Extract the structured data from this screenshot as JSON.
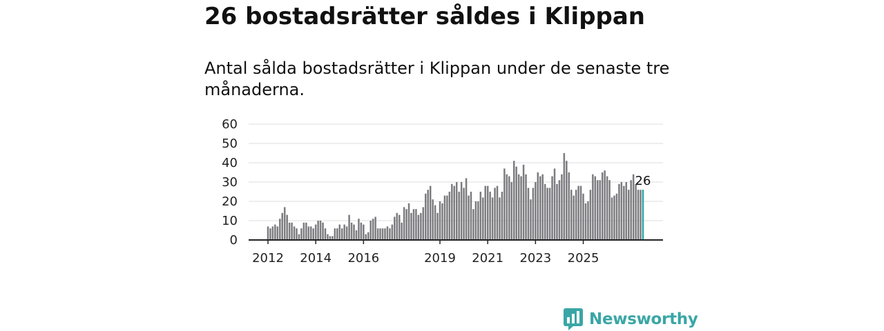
{
  "title": "26 bostadsrätter såldes i Klippan",
  "subtitle": "Antal sålda bostadsrätter i Klippan under de senaste tre månaderna.",
  "brand": {
    "name": "Newsworthy",
    "icon": "chart-bubble-icon",
    "color": "#3aa6a6"
  },
  "colors": {
    "bar": "#7b7b80",
    "highlight": "#2aa6a6",
    "grid": "#dddddd",
    "axis": "#222222"
  },
  "chart_data": {
    "type": "bar",
    "title": "",
    "xlabel": "",
    "ylabel": "",
    "ylim": [
      0,
      60
    ],
    "yticks": [
      0,
      10,
      20,
      30,
      40,
      50,
      60
    ],
    "xticks": [
      "2012",
      "2014",
      "2016",
      "2019",
      "2021",
      "2023",
      "2025"
    ],
    "xtick_index": [
      0,
      20,
      40,
      72,
      92,
      112,
      132
    ],
    "grid": true,
    "legend": "none",
    "highlight_last": true,
    "annotation": "26",
    "values": [
      7,
      6,
      7,
      8,
      7,
      11,
      14,
      17,
      13,
      9,
      9,
      7,
      6,
      3,
      6,
      9,
      9,
      7,
      7,
      6,
      8,
      10,
      10,
      9,
      6,
      3,
      2,
      2,
      6,
      6,
      8,
      6,
      8,
      7,
      13,
      9,
      8,
      5,
      11,
      9,
      8,
      3,
      4,
      10,
      11,
      12,
      6,
      6,
      6,
      6,
      7,
      6,
      8,
      12,
      14,
      13,
      9,
      17,
      16,
      19,
      14,
      16,
      16,
      13,
      14,
      17,
      24,
      26,
      28,
      21,
      18,
      14,
      20,
      19,
      23,
      23,
      25,
      29,
      28,
      30,
      25,
      30,
      27,
      32,
      23,
      25,
      16,
      20,
      20,
      25,
      22,
      28,
      28,
      25,
      22,
      27,
      28,
      22,
      25,
      37,
      34,
      33,
      30,
      41,
      38,
      34,
      33,
      39,
      34,
      27,
      21,
      27,
      30,
      35,
      33,
      34,
      29,
      27,
      27,
      33,
      37,
      29,
      31,
      34,
      45,
      41,
      35,
      26,
      23,
      26,
      28,
      28,
      24,
      19,
      20,
      26,
      34,
      33,
      31,
      31,
      35,
      36,
      33,
      31,
      22,
      23,
      24,
      29,
      30,
      28,
      30,
      26,
      31,
      34,
      29,
      26,
      26,
      26
    ]
  }
}
